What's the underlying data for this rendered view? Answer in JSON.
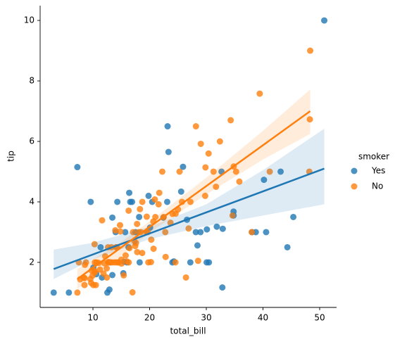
{
  "chart_data": {
    "type": "scatter",
    "x_label": "total_bill",
    "y_label": "tip",
    "legend_title": "smoker",
    "legend_position": "right",
    "grid": false,
    "xlim": [
      0.68,
      52.98
    ],
    "ylim": [
      0.51,
      10.49
    ],
    "xticks": [
      10,
      20,
      30,
      40,
      50
    ],
    "yticks": [
      2,
      4,
      6,
      8,
      10
    ],
    "series": [
      {
        "name": "Yes",
        "color": "#1f77b4",
        "x": [
          3.07,
          5.75,
          7.25,
          9.6,
          10.07,
          10.59,
          11.35,
          11.59,
          12.54,
          12.9,
          13.0,
          13.42,
          13.42,
          14.0,
          14.3,
          15.36,
          15.69,
          15.48,
          16.0,
          16.27,
          16.4,
          16.58,
          16.9,
          17.51,
          18.15,
          18.24,
          19.81,
          20.08,
          20.45,
          22.42,
          23.1,
          23.17,
          23.33,
          24.27,
          24.01,
          25.56,
          25.89,
          26.59,
          27.18,
          28.15,
          28.44,
          28.97,
          30.06,
          30.46,
          30.1,
          31.85,
          32.68,
          32.9,
          32.83,
          34.81,
          34.81,
          38.07,
          38.73,
          40.17,
          40.55,
          43.11,
          44.3,
          45.35,
          50.81
        ],
        "y": [
          1.0,
          1.0,
          5.15,
          4.0,
          1.83,
          1.61,
          2.5,
          1.5,
          1.0,
          1.1,
          2.0,
          3.48,
          1.58,
          3.0,
          4.0,
          1.64,
          3.0,
          2.02,
          2.0,
          2.5,
          4.3,
          4.0,
          4.0,
          3.0,
          3.5,
          2.0,
          4.2,
          3.15,
          4.0,
          3.48,
          4.0,
          6.5,
          5.65,
          2.03,
          2.0,
          4.34,
          5.16,
          3.41,
          2.0,
          3.0,
          2.56,
          3.0,
          2.0,
          2.0,
          3.09,
          3.18,
          5.0,
          3.11,
          1.17,
          3.68,
          3.55,
          3.0,
          3.0,
          4.73,
          3.0,
          5.0,
          2.5,
          3.5,
          10.0
        ],
        "regression": {
          "x": [
            3.07,
            50.81
          ],
          "y": [
            1.78,
            5.1
          ]
        },
        "ci": {
          "x": [
            3.07,
            10,
            20,
            30,
            40,
            50.81
          ],
          "lower": [
            1.45,
            2.1,
            2.77,
            3.2,
            3.55,
            3.92
          ],
          "upper": [
            2.42,
            2.65,
            3.18,
            3.92,
            5.05,
            6.42
          ]
        }
      },
      {
        "name": "No",
        "color": "#ff7f0e",
        "x": [
          7.25,
          7.51,
          7.74,
          8.35,
          8.51,
          8.52,
          8.58,
          8.77,
          9.55,
          9.68,
          9.78,
          9.94,
          10.07,
          10.27,
          10.29,
          10.33,
          10.34,
          10.51,
          10.63,
          11.02,
          11.24,
          11.61,
          11.87,
          12.02,
          12.16,
          12.43,
          12.46,
          12.66,
          12.69,
          12.74,
          13.03,
          13.27,
          13.37,
          13.81,
          13.94,
          14.07,
          14.15,
          14.26,
          14.48,
          14.52,
          14.78,
          14.83,
          15.01,
          15.04,
          15.42,
          15.77,
          15.98,
          16.29,
          16.31,
          16.45,
          16.97,
          17.07,
          17.29,
          17.46,
          17.59,
          17.78,
          17.81,
          18.04,
          18.29,
          18.43,
          18.69,
          18.71,
          19.44,
          19.49,
          19.65,
          19.77,
          20.23,
          20.29,
          20.65,
          20.69,
          20.92,
          21.01,
          21.58,
          21.7,
          22.23,
          22.49,
          22.76,
          22.82,
          23.68,
          24.06,
          24.55,
          24.59,
          25.0,
          25.28,
          25.71,
          26.41,
          26.88,
          27.2,
          28.17,
          28.55,
          29.03,
          29.8,
          29.85,
          30.4,
          31.27,
          31.71,
          32.4,
          34.3,
          34.63,
          34.83,
          35.26,
          35.83,
          38.01,
          39.42,
          41.19,
          48.17,
          48.27,
          48.33
        ],
        "y": [
          1.0,
          2.0,
          1.44,
          1.5,
          1.25,
          1.48,
          1.92,
          2.0,
          1.45,
          1.32,
          1.73,
          1.56,
          1.25,
          1.71,
          2.6,
          1.67,
          2.0,
          1.25,
          2.0,
          1.98,
          1.76,
          3.39,
          1.63,
          1.97,
          2.2,
          1.8,
          1.5,
          2.5,
          2.0,
          2.01,
          2.0,
          2.5,
          2.0,
          2.0,
          3.06,
          2.5,
          2.0,
          2.5,
          2.0,
          2.0,
          3.23,
          3.02,
          2.09,
          1.96,
          1.57,
          2.23,
          2.03,
          3.71,
          2.0,
          2.47,
          1.01,
          3.0,
          2.71,
          2.54,
          2.64,
          3.27,
          2.34,
          3.0,
          3.76,
          3.0,
          2.31,
          4.0,
          3.0,
          3.51,
          3.0,
          2.0,
          2.01,
          2.75,
          3.35,
          2.45,
          4.08,
          3.5,
          3.92,
          4.3,
          5.0,
          3.5,
          3.0,
          2.18,
          3.31,
          3.6,
          2.0,
          3.61,
          3.75,
          5.0,
          4.0,
          1.5,
          3.12,
          4.0,
          6.5,
          2.05,
          5.92,
          4.2,
          5.14,
          5.6,
          5.0,
          4.5,
          6.0,
          6.7,
          3.55,
          5.17,
          5.0,
          4.67,
          3.0,
          7.58,
          5.0,
          5.0,
          6.73,
          9.0
        ],
        "regression": {
          "x": [
            7.25,
            48.33
          ],
          "y": [
            1.45,
            7.0
          ]
        },
        "ci": {
          "x": [
            7.25,
            15,
            20,
            30,
            40,
            48.33
          ],
          "lower": [
            1.12,
            2.2,
            2.99,
            4.25,
            5.4,
            6.25
          ],
          "upper": [
            1.78,
            2.68,
            3.35,
            4.8,
            6.35,
            7.72
          ]
        }
      }
    ]
  }
}
